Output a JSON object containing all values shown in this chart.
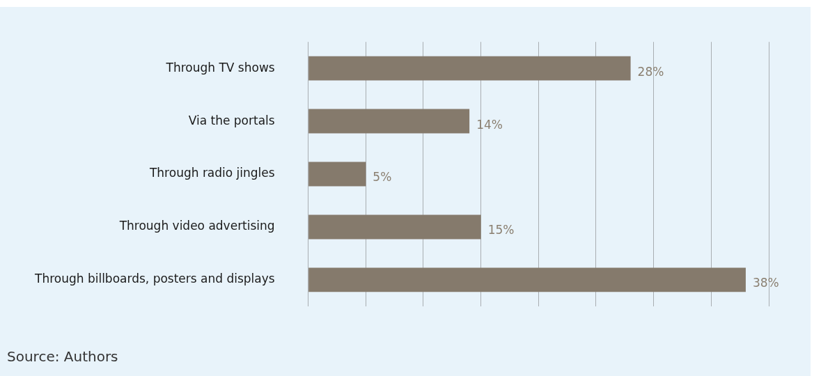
{
  "chart_data": {
    "type": "bar",
    "orientation": "horizontal",
    "categories": [
      "Through TV shows",
      "Via the portals",
      "Through radio jingles",
      "Through video advertising",
      "Through billboards, posters and displays"
    ],
    "values": [
      28,
      14,
      5,
      15,
      38
    ],
    "color": "#857a6c",
    "value_labels": [
      "28%",
      "14%",
      "5%",
      "15%",
      "38%"
    ],
    "xlim": [
      0,
      40
    ],
    "xticks": [
      {
        "value": 0,
        "label": null
      },
      {
        "value": 5,
        "label": null
      },
      {
        "value": 10,
        "label": null
      },
      {
        "value": 15,
        "label": null
      },
      {
        "value": 20,
        "label": null
      },
      {
        "value": 25,
        "label": null
      },
      {
        "value": 30,
        "label": null
      },
      {
        "value": 35,
        "label": null
      },
      {
        "value": 40,
        "label": null
      }
    ],
    "grid": "x",
    "tick_labels": "y",
    "annotations": [
      "Source: Authors"
    ]
  }
}
